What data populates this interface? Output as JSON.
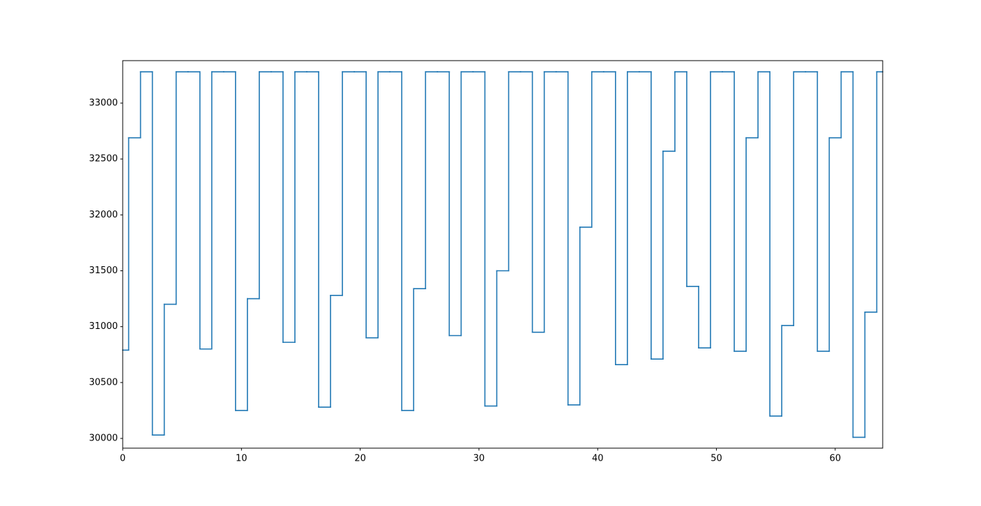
{
  "chart_data": {
    "type": "line",
    "step": "mid",
    "x": [
      0,
      1,
      2,
      3,
      4,
      5,
      6,
      7,
      8,
      9,
      10,
      11,
      12,
      13,
      14,
      15,
      16,
      17,
      18,
      19,
      20,
      21,
      22,
      23,
      24,
      25,
      26,
      27,
      28,
      29,
      30,
      31,
      32,
      33,
      34,
      35,
      36,
      37,
      38,
      39,
      40,
      41,
      42,
      43,
      44,
      45,
      46,
      47,
      48,
      49,
      50,
      51,
      52,
      53,
      54,
      55,
      56,
      57,
      58,
      59,
      60,
      61,
      62,
      63,
      64
    ],
    "series": [
      {
        "color": "#1f77b4",
        "values": [
          30790,
          32690,
          33280,
          30030,
          31200,
          33280,
          33280,
          30800,
          33280,
          33280,
          30250,
          31250,
          33280,
          33280,
          30860,
          33280,
          33280,
          30280,
          31280,
          33280,
          33280,
          30900,
          33280,
          33280,
          30250,
          31340,
          33280,
          33280,
          30920,
          33280,
          33280,
          30290,
          31500,
          33280,
          33280,
          30950,
          33280,
          33280,
          30300,
          31890,
          33280,
          33280,
          30660,
          33280,
          33280,
          30710,
          32570,
          33280,
          31360,
          30810,
          33280,
          33280,
          30780,
          32690,
          33280,
          30200,
          31010,
          33280,
          33280,
          30780,
          32690,
          33280,
          30010,
          31130,
          33280
        ]
      }
    ],
    "xlim": [
      0,
      64
    ],
    "xticks": [
      0,
      10,
      20,
      30,
      40,
      50,
      60
    ],
    "ylim": [
      29913,
      33380
    ],
    "yticks": [
      30000,
      30500,
      31000,
      31500,
      32000,
      32500,
      33000
    ],
    "grid": false
  }
}
